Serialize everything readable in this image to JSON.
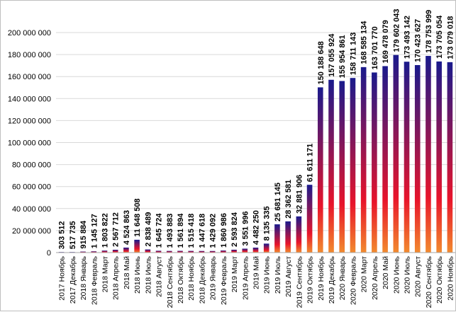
{
  "chart_data": {
    "type": "bar",
    "title": "",
    "xlabel": "",
    "ylabel": "",
    "ylim": [
      0,
      200000000
    ],
    "y_ticks": [
      "0",
      "20 000 000",
      "40 000 000",
      "60 000 000",
      "80 000 000",
      "100 000 000",
      "120 000 000",
      "140 000 000",
      "160 000 000",
      "180 000 000",
      "200 000 000"
    ],
    "y_tick_values": [
      0,
      20000000,
      40000000,
      60000000,
      80000000,
      100000000,
      120000000,
      140000000,
      160000000,
      180000000,
      200000000
    ],
    "grid": true,
    "legend": "none",
    "bar_gradient": [
      "#1a1a8c",
      "#e8142b",
      "#f28a2e"
    ],
    "categories": [
      "2017 Ноябрь",
      "2017 Декабрь",
      "2018 Январь",
      "2018 Февраль",
      "2018 Март",
      "2018 Апрель",
      "2018 Май",
      "2018 Июнь",
      "2018 Июль",
      "2018 Август",
      "2018 Сентябрь",
      "2018 Октябрь",
      "2018 Ноябрь",
      "2018 Декабрь",
      "2019 Январь",
      "2019 Февраль",
      "2019 Март",
      "2019 Апрель",
      "2019 Май",
      "2019 Июнь",
      "2019 Июль",
      "2019 Август",
      "2019 Сентябрь",
      "2019 Октябрь",
      "2019 Ноябрь",
      "2019 Декабрь",
      "2020 Январь",
      "2020 Февраль",
      "2020 Март",
      "2020 Апрель",
      "2020 Май",
      "2020 Июнь",
      "2020 Июль",
      "2020 Август",
      "2020 Сентябрь",
      "2020 Октябрь",
      "2020 Ноябрь"
    ],
    "values": [
      303512,
      517735,
      915884,
      1145127,
      1803822,
      2567712,
      4524863,
      11648508,
      2838489,
      1645724,
      1493883,
      1561894,
      1515418,
      1447618,
      1429092,
      1860986,
      2593824,
      3551996,
      4482250,
      8135335,
      25681145,
      28362581,
      32881906,
      61611171,
      150188648,
      157055924,
      155954861,
      158711143,
      168585134,
      163701770,
      169478079,
      179602043,
      173493142,
      170423627,
      178753999,
      173705054,
      173079018
    ],
    "data_labels": [
      "303 512",
      "517 735",
      "915 884",
      "1 145 127",
      "1 803 822",
      "2 567 712",
      "4 524 863",
      "11 648 508",
      "2 838 489",
      "1 645 724",
      "1 493 883",
      "1 561 894",
      "1 515 418",
      "1 447 618",
      "1 429 092",
      "1 860 986",
      "2 593 824",
      "3 551 996",
      "4 482 250",
      "8 135 335",
      "25 681 145",
      "28 362 581",
      "32 881 906",
      "61 611 171",
      "150 188 648",
      "157 055 924",
      "155 954 861",
      "158 711 143",
      "168 585 134",
      "163 701 770",
      "169 478 079",
      "179 602 043",
      "173 493 142",
      "170 423 627",
      "178 753 999",
      "173 705 054",
      "173 079 018"
    ]
  }
}
